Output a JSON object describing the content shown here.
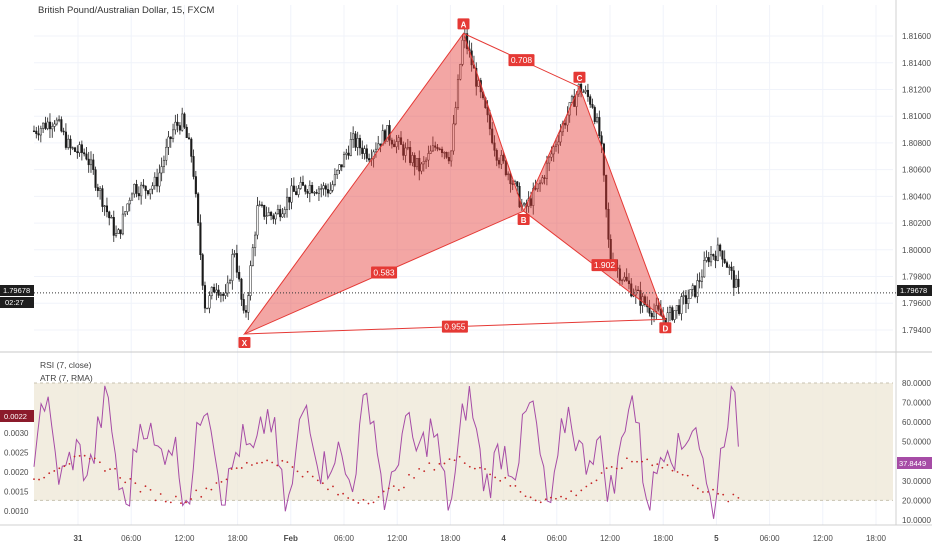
{
  "chart_data": {
    "type": "candlestick",
    "title": "British Pound/Australian Dollar, 15, FXCM",
    "price_axis": {
      "ticks": [
        "1.81600",
        "1.81400",
        "1.81200",
        "1.81000",
        "1.80800",
        "1.80600",
        "1.80400",
        "1.80200",
        "1.80000",
        "1.79800",
        "1.79600",
        "1.79400"
      ],
      "tick_values": [
        1.816,
        1.814,
        1.812,
        1.81,
        1.808,
        1.806,
        1.804,
        1.802,
        1.8,
        1.798,
        1.796,
        1.794
      ],
      "range": [
        1.7925,
        1.8172
      ]
    },
    "time_axis": {
      "ticks": [
        "31",
        "06:00",
        "12:00",
        "18:00",
        "Feb",
        "06:00",
        "12:00",
        "18:00",
        "4",
        "06:00",
        "12:00",
        "18:00",
        "5",
        "06:00",
        "12:00",
        "18:00"
      ],
      "highlighted_ticks": [
        "31",
        "Feb",
        "4",
        "5"
      ]
    },
    "current_price": "1.79678",
    "current_price_value": 1.79678,
    "countdown": "02:27",
    "pattern": {
      "name": "harmonic",
      "color": "#e53935",
      "points": [
        {
          "label": "X",
          "t": 0.245,
          "price": 1.7937
        },
        {
          "label": "A",
          "t": 0.5,
          "price": 1.8162
        },
        {
          "label": "B",
          "t": 0.57,
          "price": 1.8029
        },
        {
          "label": "C",
          "t": 0.635,
          "price": 1.8122
        },
        {
          "label": "D",
          "t": 0.735,
          "price": 1.7948
        }
      ],
      "ratios": [
        "0.583",
        "0.708",
        "1.902",
        "0.955"
      ]
    },
    "indicators": {
      "rsi": {
        "label": "RSI (7, close)",
        "value": "37.8449",
        "value_num": 37.8449,
        "color": "#a64ca6",
        "band_color": "#ede7d6"
      },
      "atr": {
        "label": "ATR (7, RMA)",
        "value": "0.0022",
        "value_num": 0.0022,
        "color": "#c62828"
      },
      "left_ticks": [
        "0.0030",
        "0.0025",
        "0.0020",
        "0.0015",
        "0.0010"
      ],
      "left_tick_values": [
        0.003,
        0.0025,
        0.002,
        0.0015,
        0.001
      ],
      "right_ticks": [
        "80.0000",
        "70.0000",
        "60.0000",
        "50.0000",
        "40.0000",
        "30.0000",
        "20.0000",
        "10.0000"
      ],
      "right_tick_values": [
        80,
        70,
        60,
        50,
        40,
        30,
        20,
        10
      ],
      "rsi_band": [
        20,
        80
      ]
    }
  }
}
